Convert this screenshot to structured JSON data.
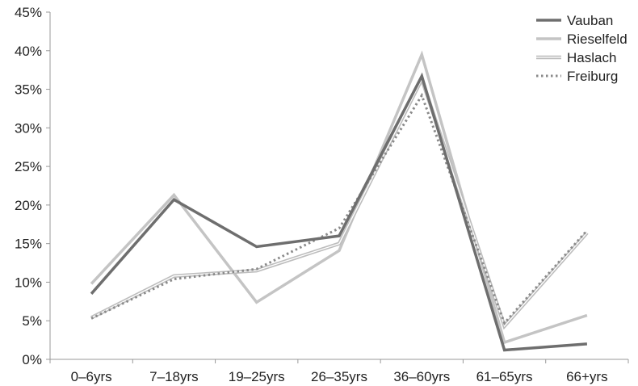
{
  "chart_data": {
    "type": "line",
    "categories": [
      "0–6yrs",
      "7–18yrs",
      "19–25yrs",
      "26–35yrs",
      "36–60yrs",
      "61–65yrs",
      "66+yrs"
    ],
    "ylim": [
      0,
      45
    ],
    "yticks": [
      0,
      5,
      10,
      15,
      20,
      25,
      30,
      35,
      40,
      45
    ],
    "ytick_format": "%",
    "grid": false,
    "legend_position": "top-right",
    "series": [
      {
        "name": "Vauban",
        "color": "#6e6e6e",
        "style": "solid-thick",
        "values": [
          8.5,
          20.7,
          14.6,
          16.0,
          36.7,
          1.2,
          2.0
        ]
      },
      {
        "name": "Rieselfeld",
        "color": "#c4c4c4",
        "style": "solid-thick",
        "values": [
          9.8,
          21.3,
          7.4,
          14.1,
          39.5,
          2.2,
          5.7
        ]
      },
      {
        "name": "Haslach",
        "color": "#bdbdbd",
        "style": "double",
        "values": [
          5.4,
          10.8,
          11.5,
          15.0,
          36.3,
          4.3,
          16.4
        ]
      },
      {
        "name": "Freiburg",
        "color": "#8a8a8a",
        "style": "dotted",
        "values": [
          5.3,
          10.4,
          11.7,
          17.0,
          34.2,
          4.7,
          16.7
        ]
      }
    ]
  }
}
